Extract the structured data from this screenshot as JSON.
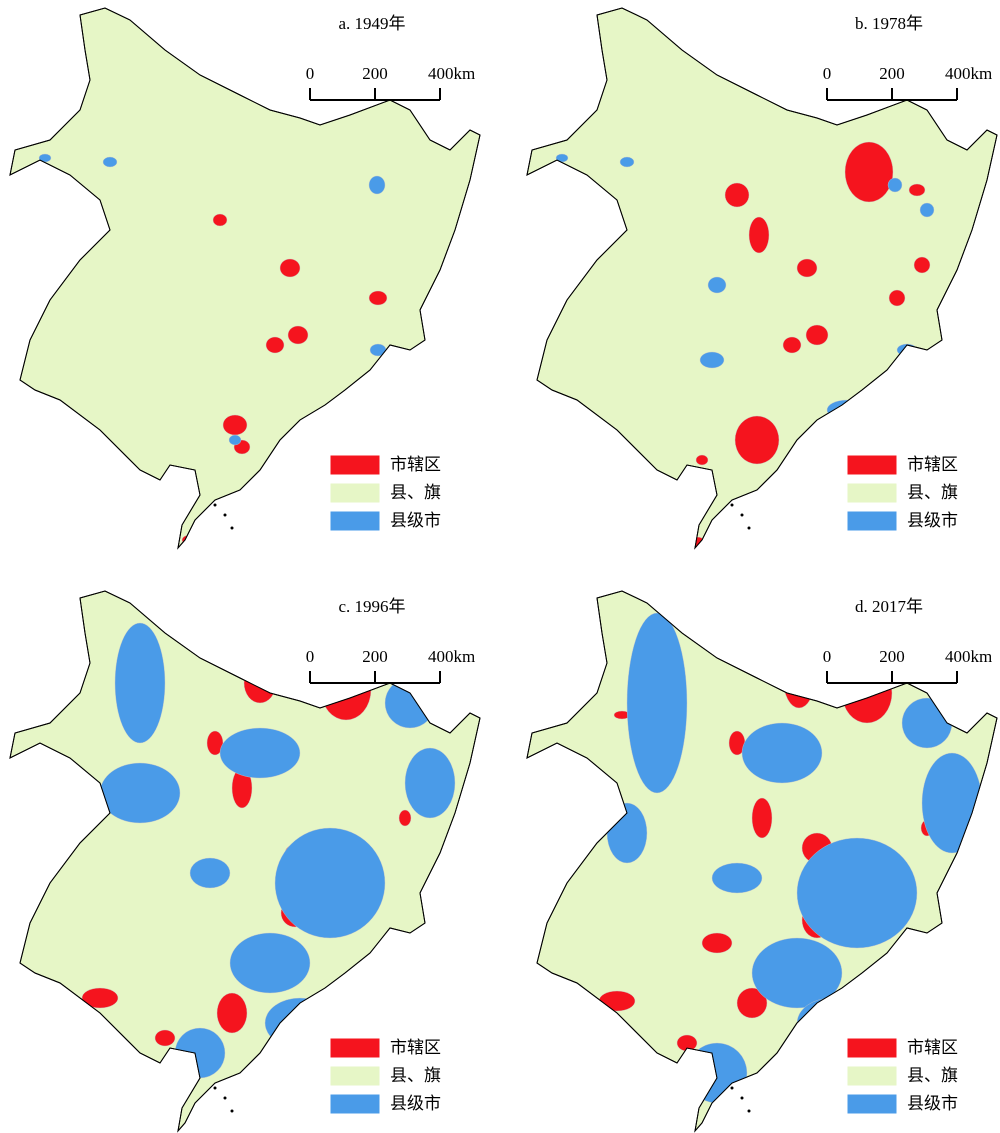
{
  "panels": [
    {
      "title": "a. 1949年",
      "scale_labels": [
        "0",
        "200",
        "400km"
      ],
      "legend": [
        {
          "label": "市辖区",
          "color": "#f5141e"
        },
        {
          "label": "县、旗",
          "color": "#e6f6c6"
        },
        {
          "label": "县级市",
          "color": "#4a9be8"
        }
      ]
    },
    {
      "title": "b. 1978年",
      "scale_labels": [
        "0",
        "200",
        "400km"
      ],
      "legend": [
        {
          "label": "市辖区",
          "color": "#f5141e"
        },
        {
          "label": "县、旗",
          "color": "#e6f6c6"
        },
        {
          "label": "县级市",
          "color": "#4a9be8"
        }
      ]
    },
    {
      "title": "c. 1996年",
      "scale_labels": [
        "0",
        "200",
        "400km"
      ],
      "legend": [
        {
          "label": "市辖区",
          "color": "#f5141e"
        },
        {
          "label": "县、旗",
          "color": "#e6f6c6"
        },
        {
          "label": "县级市",
          "color": "#4a9be8"
        }
      ]
    },
    {
      "title": "d. 2017年",
      "scale_labels": [
        "0",
        "200",
        "400km"
      ],
      "legend": [
        {
          "label": "市辖区",
          "color": "#f5141e"
        },
        {
          "label": "县、旗",
          "color": "#e6f6c6"
        },
        {
          "label": "县级市",
          "color": "#4a9be8"
        }
      ]
    }
  ]
}
